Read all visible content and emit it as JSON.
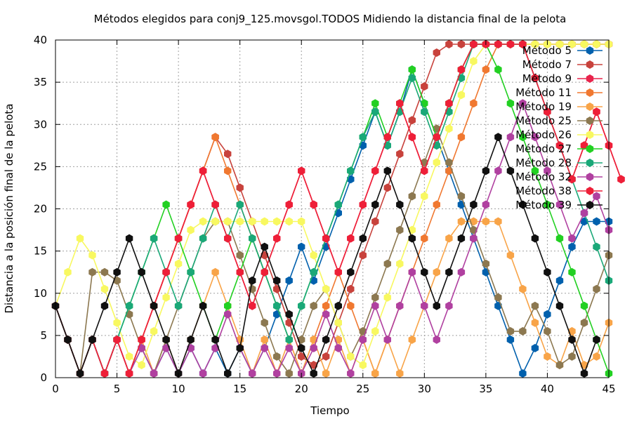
{
  "chart_data": {
    "type": "line",
    "title": "Métodos elegidos para conj9_125.movsgol.TODOS Midiendo la distancia final de la pelota",
    "xlabel": "Tiempo",
    "ylabel": "Distancia a la posición final de la pelota",
    "xlim": [
      0,
      45
    ],
    "ylim": [
      0,
      40
    ],
    "xticks": [
      0,
      5,
      10,
      15,
      20,
      25,
      30,
      35,
      40,
      45
    ],
    "yticks": [
      0,
      5,
      10,
      15,
      20,
      25,
      30,
      35,
      40
    ],
    "grid": true,
    "legend_position": "top-right",
    "series": [
      {
        "name": "Método 5",
        "color": "#0060ad",
        "values": [
          8.5,
          4.5,
          0.5,
          4.5,
          0.5,
          4.5,
          0.5,
          3.5,
          0.5,
          3.5,
          0.5,
          3.5,
          0.5,
          3.5,
          0.5,
          3.5,
          0.5,
          3.5,
          7.5,
          11.5,
          15.5,
          11.5,
          15.5,
          19.5,
          23.5,
          27.5,
          31.5,
          27.5,
          31.5,
          36.5,
          32.5,
          28.5,
          24.5,
          20.5,
          16.5,
          12.5,
          8.5,
          4.5,
          0.5,
          3.5,
          7.5,
          11.5,
          15.5,
          18.5,
          18.5,
          18.5
        ]
      },
      {
        "name": "Método 7",
        "color": "#c8423c",
        "values": [
          8.5,
          4.5,
          0.5,
          4.5,
          0.5,
          4.5,
          0.5,
          4.5,
          8.5,
          12.5,
          16.5,
          20.5,
          24.5,
          28.5,
          26.5,
          22.5,
          18.5,
          14.5,
          10.5,
          6.5,
          2.5,
          1.5,
          2.5,
          6.5,
          10.5,
          14.5,
          18.5,
          22.5,
          26.5,
          30.5,
          34.5,
          38.5,
          39.5,
          39.5,
          39.5,
          39.5,
          39.5,
          39.5,
          39.5,
          39.5,
          39.5,
          39.5,
          39.5,
          39.5,
          39.5,
          39.5
        ]
      },
      {
        "name": "Método 9",
        "color": "#e8244c",
        "values": [
          8.5,
          4.5,
          0.5,
          4.5,
          0.5,
          4.5,
          0.5,
          4.5,
          8.5,
          12.5,
          16.5,
          20.5,
          24.5,
          20.5,
          16.5,
          12.5,
          8.5,
          12.5,
          16.5,
          20.5,
          24.5,
          20.5,
          16.5,
          12.5,
          16.5,
          20.5,
          24.5,
          28.5,
          32.5,
          28.5,
          24.5,
          28.5,
          32.5,
          36.5,
          39.5,
          39.5,
          39.5,
          39.5,
          39.5,
          35.5,
          31.5,
          27.5,
          23.5,
          27.5,
          31.5,
          27.5,
          23.5
        ]
      },
      {
        "name": "Método 11",
        "color": "#f07830",
        "values": [
          8.5,
          4.5,
          0.5,
          4.5,
          0.5,
          4.5,
          0.5,
          4.5,
          8.5,
          12.5,
          16.5,
          20.5,
          24.5,
          28.5,
          24.5,
          20.5,
          16.5,
          12.5,
          8.5,
          4.5,
          0.5,
          4.5,
          8.5,
          12.5,
          8.5,
          4.5,
          0.5,
          4.5,
          8.5,
          12.5,
          16.5,
          20.5,
          24.5,
          28.5,
          32.5,
          36.5,
          39.5,
          39.5,
          39.5,
          39.5,
          39.5,
          39.5,
          39.5,
          39.5,
          39.5,
          39.5
        ]
      },
      {
        "name": "Método 19",
        "color": "#f8a448",
        "values": [
          8.5,
          4.5,
          0.5,
          4.5,
          0.5,
          4.5,
          0.5,
          4.5,
          0.5,
          4.5,
          0.5,
          4.5,
          8.5,
          12.5,
          8.5,
          4.5,
          0.5,
          4.5,
          0.5,
          4.5,
          0.5,
          4.5,
          0.5,
          4.5,
          0.5,
          4.5,
          0.5,
          4.5,
          0.5,
          4.5,
          8.5,
          12.5,
          16.5,
          18.5,
          18.5,
          18.5,
          18.5,
          14.5,
          10.5,
          6.5,
          2.5,
          1.5,
          5.5,
          1.5,
          2.5,
          6.5
        ]
      },
      {
        "name": "Método 25",
        "color": "#8c7850",
        "values": [
          8.5,
          4.5,
          0.5,
          12.5,
          12.5,
          11.5,
          7.5,
          3.5,
          0.5,
          4.5,
          8.5,
          12.5,
          16.5,
          18.5,
          18.5,
          14.5,
          10.5,
          6.5,
          2.5,
          0.5,
          4.5,
          8.5,
          10.5,
          6.5,
          2.5,
          5.5,
          9.5,
          13.5,
          17.5,
          21.5,
          25.5,
          29.5,
          25.5,
          21.5,
          17.5,
          13.5,
          9.5,
          5.5,
          5.5,
          8.5,
          5.5,
          1.5,
          2.5,
          6.5,
          10.5,
          14.5
        ]
      },
      {
        "name": "Método 26",
        "color": "#f8f860",
        "values": [
          8.5,
          12.5,
          16.5,
          14.5,
          10.5,
          6.5,
          2.5,
          1.5,
          5.5,
          9.5,
          13.5,
          17.5,
          18.5,
          18.5,
          18.5,
          18.5,
          18.5,
          18.5,
          18.5,
          18.5,
          18.5,
          14.5,
          10.5,
          6.5,
          2.5,
          1.5,
          5.5,
          9.5,
          13.5,
          17.5,
          21.5,
          25.5,
          29.5,
          33.5,
          37.5,
          39.5,
          39.5,
          39.5,
          39.5,
          39.5,
          39.5,
          39.5,
          39.5,
          39.5,
          39.5,
          39.5
        ]
      },
      {
        "name": "Método 27",
        "color": "#22d022",
        "values": [
          8.5,
          4.5,
          0.5,
          4.5,
          0.5,
          4.5,
          8.5,
          12.5,
          16.5,
          20.5,
          16.5,
          12.5,
          8.5,
          4.5,
          8.5,
          12.5,
          16.5,
          12.5,
          8.5,
          4.5,
          8.5,
          12.5,
          16.5,
          20.5,
          24.5,
          28.5,
          32.5,
          28.5,
          32.5,
          36.5,
          32.5,
          28.5,
          32.5,
          36.5,
          39.5,
          39.5,
          36.5,
          32.5,
          28.5,
          24.5,
          20.5,
          16.5,
          12.5,
          8.5,
          4.5,
          0.5
        ]
      },
      {
        "name": "Método 28",
        "color": "#1aa878",
        "values": [
          8.5,
          4.5,
          0.5,
          4.5,
          0.5,
          4.5,
          8.5,
          12.5,
          16.5,
          12.5,
          8.5,
          12.5,
          16.5,
          20.5,
          16.5,
          20.5,
          16.5,
          12.5,
          8.5,
          4.5,
          8.5,
          12.5,
          16.5,
          20.5,
          24.5,
          28.5,
          31.5,
          27.5,
          31.5,
          35.5,
          31.5,
          27.5,
          31.5,
          35.5,
          39.5,
          39.5,
          39.5,
          39.5,
          39.5,
          35.5,
          31.5,
          27.5,
          23.5,
          19.5,
          15.5,
          11.5
        ]
      },
      {
        "name": "Método 32",
        "color": "#b040a0",
        "values": [
          8.5,
          4.5,
          0.5,
          4.5,
          0.5,
          4.5,
          0.5,
          3.5,
          0.5,
          3.5,
          0.5,
          3.5,
          0.5,
          3.5,
          7.5,
          3.5,
          0.5,
          3.5,
          0.5,
          3.5,
          0.5,
          3.5,
          7.5,
          3.5,
          0.5,
          4.5,
          8.5,
          4.5,
          8.5,
          12.5,
          8.5,
          4.5,
          8.5,
          12.5,
          16.5,
          20.5,
          24.5,
          28.5,
          32.5,
          28.5,
          24.5,
          20.5,
          16.5,
          19.5,
          21.5,
          17.5
        ]
      },
      {
        "name": "Método 38",
        "color": "#ee1f38",
        "values": [
          8.5,
          4.5,
          0.5,
          4.5,
          0.5,
          4.5,
          0.5,
          4.5,
          8.5,
          12.5,
          16.5,
          20.5,
          24.5,
          20.5,
          16.5,
          12.5,
          8.5,
          12.5,
          16.5,
          20.5,
          24.5,
          20.5,
          16.5,
          12.5,
          16.5,
          20.5,
          24.5,
          28.5,
          32.5,
          28.5,
          24.5,
          28.5,
          32.5,
          36.5,
          39.5,
          39.5,
          39.5,
          39.5,
          39.5,
          35.5,
          31.5,
          27.5,
          23.5,
          27.5,
          31.5,
          27.5,
          23.5
        ]
      },
      {
        "name": "Método 39",
        "color": "#101010",
        "values": [
          8.5,
          4.5,
          0.5,
          4.5,
          8.5,
          12.5,
          16.5,
          12.5,
          8.5,
          4.5,
          0.5,
          4.5,
          8.5,
          4.5,
          0.5,
          3.5,
          11.5,
          15.5,
          11.5,
          7.5,
          3.5,
          0.5,
          4.5,
          8.5,
          12.5,
          16.5,
          20.5,
          24.5,
          20.5,
          16.5,
          12.5,
          8.5,
          12.5,
          16.5,
          20.5,
          24.5,
          28.5,
          24.5,
          20.5,
          16.5,
          12.5,
          8.5,
          4.5,
          0.5,
          4.5
        ]
      }
    ]
  }
}
